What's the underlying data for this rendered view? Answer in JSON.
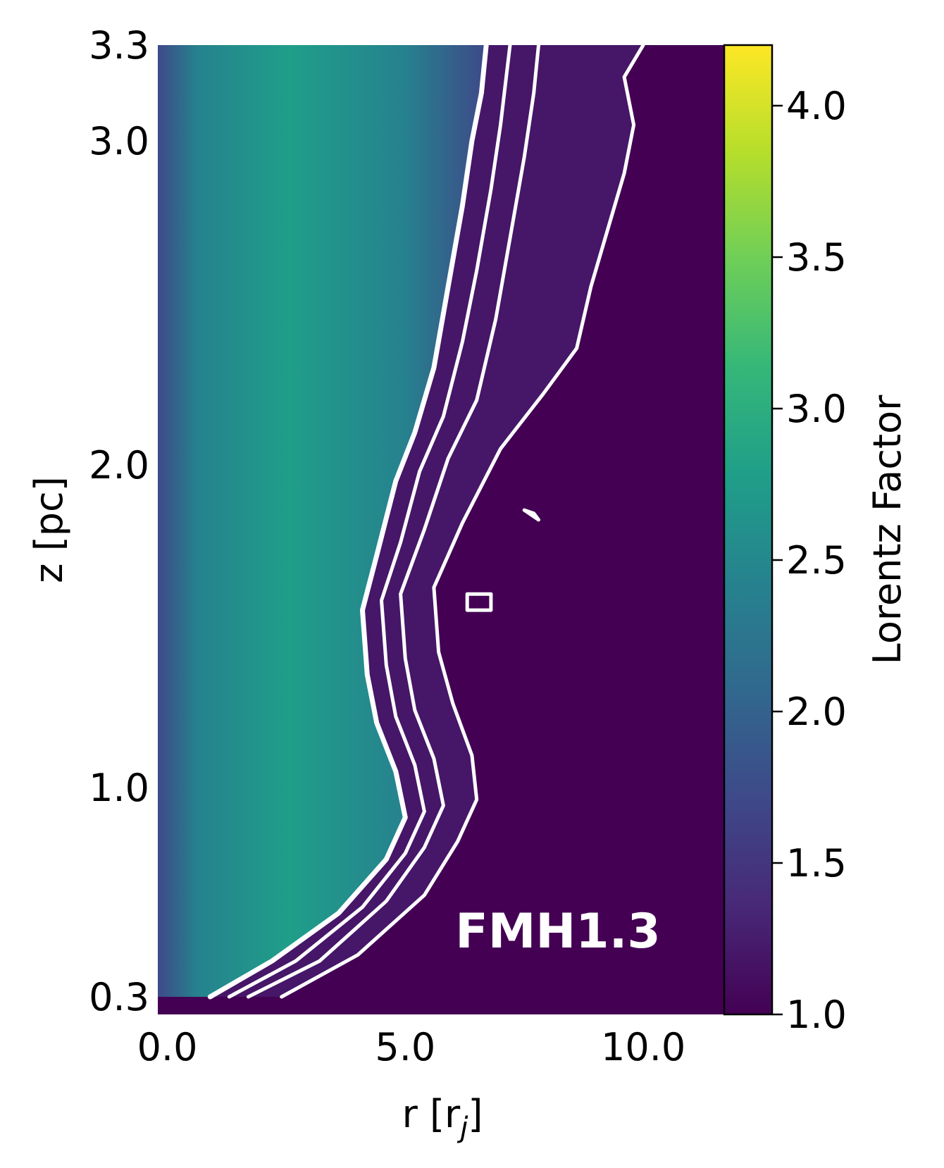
{
  "chart_data": {
    "type": "heatmap",
    "annotation": "FMH1.3",
    "xlabel": "r [r_j]",
    "xlabel_main": "r [r",
    "xlabel_sub": "j",
    "xlabel_close": "]",
    "ylabel": "z [pc]",
    "colorbar_label": "Lorentz Factor",
    "xlim": [
      -0.2,
      11.7
    ],
    "x_ticks": [
      0.0,
      5.0,
      10.0
    ],
    "x_tick_labels": [
      "0.0",
      "5.0",
      "10.0"
    ],
    "y_tick_labels": [
      "0.3",
      "1.0",
      "2.0",
      "3.0",
      "3.3"
    ],
    "y_ticks": [
      0.3,
      1.0,
      2.0,
      3.0,
      3.3
    ],
    "ylim": [
      0.3,
      3.3
    ],
    "colorbar_range": [
      1.0,
      4.2
    ],
    "colorbar_ticks": [
      1.0,
      1.5,
      2.0,
      2.5,
      3.0,
      3.5,
      4.0
    ],
    "colorbar_tick_labels": [
      "1.0",
      "1.5",
      "2.0",
      "2.5",
      "3.0",
      "3.5",
      "4.0"
    ],
    "colormap": "viridis",
    "colormap_stops": [
      "#440154",
      "#482878",
      "#3e4989",
      "#31688e",
      "#26828e",
      "#1f9e89",
      "#35b779",
      "#6ece58",
      "#b5de2b",
      "#fde725"
    ],
    "background_color": "#440154",
    "contour_color": "#ffffff",
    "contours": [
      {
        "points": [
          [
            0.9,
            0.3
          ],
          [
            2.2,
            0.42
          ],
          [
            3.6,
            0.58
          ],
          [
            4.6,
            0.76
          ],
          [
            5.0,
            0.9
          ],
          [
            4.8,
            1.05
          ],
          [
            4.4,
            1.2
          ],
          [
            4.2,
            1.35
          ],
          [
            4.1,
            1.55
          ],
          [
            4.4,
            1.72
          ],
          [
            4.8,
            1.95
          ],
          [
            5.2,
            2.1
          ],
          [
            5.6,
            2.3
          ],
          [
            5.9,
            2.55
          ],
          [
            6.2,
            2.8
          ],
          [
            6.4,
            3.0
          ],
          [
            6.6,
            3.15
          ],
          [
            6.7,
            3.3
          ]
        ]
      },
      {
        "points": [
          [
            1.3,
            0.3
          ],
          [
            2.7,
            0.42
          ],
          [
            4.1,
            0.6
          ],
          [
            5.0,
            0.78
          ],
          [
            5.4,
            0.92
          ],
          [
            5.2,
            1.07
          ],
          [
            4.8,
            1.22
          ],
          [
            4.6,
            1.38
          ],
          [
            4.5,
            1.58
          ],
          [
            4.9,
            1.76
          ],
          [
            5.3,
            1.98
          ],
          [
            5.8,
            2.15
          ],
          [
            6.2,
            2.38
          ],
          [
            6.5,
            2.6
          ],
          [
            6.8,
            2.85
          ],
          [
            7.0,
            3.05
          ],
          [
            7.2,
            3.3
          ]
        ]
      },
      {
        "points": [
          [
            1.7,
            0.3
          ],
          [
            3.2,
            0.42
          ],
          [
            4.6,
            0.62
          ],
          [
            5.4,
            0.8
          ],
          [
            5.8,
            0.94
          ],
          [
            5.6,
            1.09
          ],
          [
            5.2,
            1.24
          ],
          [
            5.0,
            1.4
          ],
          [
            4.9,
            1.6
          ],
          [
            5.4,
            1.8
          ],
          [
            5.9,
            2.02
          ],
          [
            6.5,
            2.2
          ],
          [
            6.9,
            2.45
          ],
          [
            7.2,
            2.7
          ],
          [
            7.5,
            2.95
          ],
          [
            7.7,
            3.15
          ],
          [
            7.8,
            3.3
          ]
        ]
      },
      {
        "points": [
          [
            2.4,
            0.3
          ],
          [
            4.0,
            0.44
          ],
          [
            5.4,
            0.64
          ],
          [
            6.1,
            0.82
          ],
          [
            6.5,
            0.96
          ],
          [
            6.4,
            1.1
          ],
          [
            6.0,
            1.26
          ],
          [
            5.7,
            1.42
          ],
          [
            5.6,
            1.62
          ],
          [
            6.2,
            1.82
          ],
          [
            7.0,
            2.05
          ],
          [
            7.9,
            2.22
          ],
          [
            8.6,
            2.36
          ],
          [
            8.9,
            2.55
          ],
          [
            9.3,
            2.75
          ],
          [
            9.6,
            2.9
          ],
          [
            9.8,
            3.05
          ],
          [
            9.6,
            3.2
          ],
          [
            10.0,
            3.3
          ]
        ]
      },
      {
        "points": [
          [
            7.5,
            1.86
          ],
          [
            7.8,
            1.83
          ],
          [
            7.7,
            1.85
          ],
          [
            7.5,
            1.86
          ]
        ]
      },
      {
        "points": [
          [
            6.3,
            1.55
          ],
          [
            6.8,
            1.55
          ],
          [
            6.8,
            1.6
          ],
          [
            6.3,
            1.6
          ],
          [
            6.3,
            1.55
          ]
        ]
      }
    ]
  }
}
